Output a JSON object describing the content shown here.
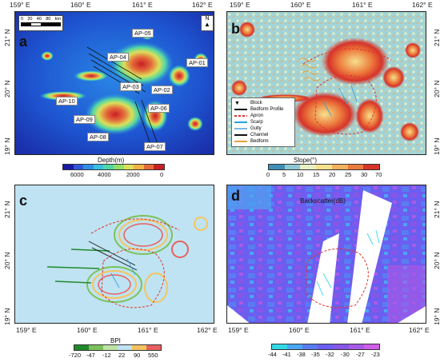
{
  "panels": {
    "a": {
      "label": "a"
    },
    "b": {
      "label": "b"
    },
    "c": {
      "label": "c"
    },
    "d": {
      "label": "d"
    }
  },
  "lon_ticks": [
    "159° E",
    "160° E",
    "161° E",
    "162° E"
  ],
  "lat_ticks": [
    "21° N",
    "20° N",
    "19° N"
  ],
  "panel_a": {
    "colorbar_title": "Depth(m)",
    "colorbar_ticks": [
      "6000",
      "4000",
      "2000",
      "0"
    ],
    "colorbar_colors": [
      "#1a1aa8",
      "#2f59d6",
      "#2f8fe6",
      "#38c1e0",
      "#4fd6a6",
      "#8ee06a",
      "#dbe05a",
      "#f3b245",
      "#e46a3a",
      "#c81e24"
    ],
    "ap_labels": [
      "AP-05",
      "AP-04",
      "AP-01",
      "AP-03",
      "AP-02",
      "AP-10",
      "AP-06",
      "AP-09",
      "AP-08",
      "AP-07"
    ],
    "scale_labels": [
      "0",
      "20",
      "40",
      "80"
    ],
    "scale_unit": "km",
    "north": "N"
  },
  "panel_b": {
    "colorbar_title": "Slope(°)",
    "colorbar_ticks": [
      "0",
      "5",
      "10",
      "15",
      "20",
      "25",
      "30",
      "70"
    ],
    "colorbar_colors": [
      "#3d8fb5",
      "#8ec8d2",
      "#e6f0c2",
      "#f6e08e",
      "#f2b25e",
      "#ec7a3c",
      "#d6332a"
    ],
    "legend": {
      "block": "Block",
      "bedform_profile": "Bedform Profile",
      "apron": "Apron",
      "scarp": "Scarp",
      "gully": "Gully",
      "channel": "Channel",
      "bedform": "Bedform"
    },
    "legend_colors": {
      "apron": "#e0322e",
      "scarp": "#2aa0e0",
      "gully": "#7ab8e8",
      "channel": "#111111",
      "bedform": "#e8a13a"
    }
  },
  "panel_c": {
    "colorbar_title": "BPI",
    "colorbar_ticks": [
      "-720",
      "-47",
      "-12",
      "22",
      "90",
      "550"
    ],
    "colorbar_colors": [
      "#1f8a2a",
      "#7dc25a",
      "#bfe3a6",
      "#bfe3f2",
      "#f6c45e",
      "#e86060"
    ]
  },
  "panel_d": {
    "colorbar_title": "Backscatter(dB)",
    "colorbar_ticks": [
      "-44",
      "-41",
      "-38",
      "-35",
      "-32",
      "-30",
      "-27",
      "-23"
    ],
    "colorbar_colors": [
      "#32d8e6",
      "#4aa6f0",
      "#5a7cf2",
      "#6b5ef0",
      "#8656e8",
      "#a85ae6",
      "#d05ee8"
    ]
  }
}
